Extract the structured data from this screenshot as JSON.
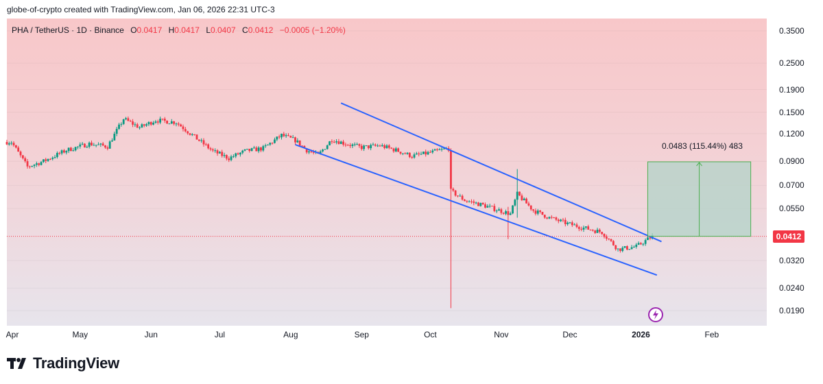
{
  "header": {
    "note": "globe-of-crypto created with TradingView.com, Jan 06, 2026 22:31 UTC-3"
  },
  "legend": {
    "symbol": "PHA / TetherUS · 1D · Binance",
    "open_label": "O",
    "open": "0.0417",
    "high_label": "H",
    "high": "0.0417",
    "low_label": "L",
    "low": "0.0407",
    "close_label": "C",
    "close": "0.0412",
    "change": "−0.0005 (−1.20%)"
  },
  "measure": {
    "label": "0.0483 (115.44%) 483",
    "from_price": 0.0412,
    "to_price": 0.0895
  },
  "last_price": {
    "label": "0.0412",
    "value": 0.0412
  },
  "colors": {
    "up": "#089981",
    "down": "#f23645",
    "channel": "#2962ff",
    "measure_fill": "#b2d3c8",
    "measure_arrow": "#4caf50"
  },
  "brand": {
    "name": "TradingView"
  },
  "chart_data": {
    "type": "candlestick",
    "scale": "log",
    "y_ticks": [
      "0.3500",
      "0.2500",
      "0.1900",
      "0.1500",
      "0.1200",
      "0.0900",
      "0.0700",
      "0.0550",
      "0.0320",
      "0.0240",
      "0.0190"
    ],
    "y_tick_values": [
      0.35,
      0.25,
      0.19,
      0.15,
      0.12,
      0.09,
      0.07,
      0.055,
      0.032,
      0.024,
      0.019
    ],
    "x_ticks": [
      {
        "label": "Apr",
        "date": "2025-04-01"
      },
      {
        "label": "May",
        "date": "2025-05-01"
      },
      {
        "label": "Jun",
        "date": "2025-06-01"
      },
      {
        "label": "Jul",
        "date": "2025-07-01"
      },
      {
        "label": "Aug",
        "date": "2025-08-01"
      },
      {
        "label": "Sep",
        "date": "2025-09-01"
      },
      {
        "label": "Oct",
        "date": "2025-10-01"
      },
      {
        "label": "Nov",
        "date": "2025-11-01"
      },
      {
        "label": "Dec",
        "date": "2025-12-01"
      },
      {
        "label": "2026",
        "date": "2026-01-01",
        "bold": true
      },
      {
        "label": "Feb",
        "date": "2026-02-01"
      }
    ],
    "price_path": [
      [
        "2025-04-01",
        0.11
      ],
      [
        "2025-04-08",
        0.085
      ],
      [
        "2025-04-15",
        0.09
      ],
      [
        "2025-04-25",
        0.101
      ],
      [
        "2025-05-05",
        0.108
      ],
      [
        "2025-05-13",
        0.105
      ],
      [
        "2025-05-20",
        0.14
      ],
      [
        "2025-05-27",
        0.128
      ],
      [
        "2025-06-03",
        0.138
      ],
      [
        "2025-06-12",
        0.135
      ],
      [
        "2025-06-20",
        0.116
      ],
      [
        "2025-06-28",
        0.1
      ],
      [
        "2025-07-05",
        0.093
      ],
      [
        "2025-07-12",
        0.1
      ],
      [
        "2025-07-20",
        0.103
      ],
      [
        "2025-07-28",
        0.118
      ],
      [
        "2025-08-03",
        0.112
      ],
      [
        "2025-08-08",
        0.101
      ],
      [
        "2025-08-13",
        0.096
      ],
      [
        "2025-08-19",
        0.113
      ],
      [
        "2025-08-25",
        0.108
      ],
      [
        "2025-09-01",
        0.104
      ],
      [
        "2025-09-09",
        0.106
      ],
      [
        "2025-09-16",
        0.101
      ],
      [
        "2025-09-23",
        0.095
      ],
      [
        "2025-09-30",
        0.098
      ],
      [
        "2025-10-09",
        0.103
      ],
      [
        "2025-10-10",
        0.066
      ],
      [
        "2025-10-16",
        0.06
      ],
      [
        "2025-10-24",
        0.057
      ],
      [
        "2025-10-31",
        0.054
      ],
      [
        "2025-11-05",
        0.052
      ],
      [
        "2025-11-08",
        0.064
      ],
      [
        "2025-11-15",
        0.054
      ],
      [
        "2025-11-22",
        0.05
      ],
      [
        "2025-11-30",
        0.047
      ],
      [
        "2025-12-07",
        0.045
      ],
      [
        "2025-12-15",
        0.043
      ],
      [
        "2025-12-22",
        0.036
      ],
      [
        "2025-12-30",
        0.037
      ],
      [
        "2026-01-06",
        0.0412
      ]
    ],
    "wicks": [
      {
        "date": "2025-10-10",
        "low": 0.0195,
        "high": 0.103
      },
      {
        "date": "2025-11-08",
        "low": 0.05,
        "high": 0.083
      },
      {
        "date": "2025-11-04",
        "low": 0.04,
        "high": 0.056
      }
    ],
    "channel_upper": [
      [
        "2025-08-23",
        0.165
      ],
      [
        "2026-01-10",
        0.039
      ]
    ],
    "channel_lower": [
      [
        "2025-08-03",
        0.107
      ],
      [
        "2026-01-08",
        0.0275
      ]
    ]
  }
}
